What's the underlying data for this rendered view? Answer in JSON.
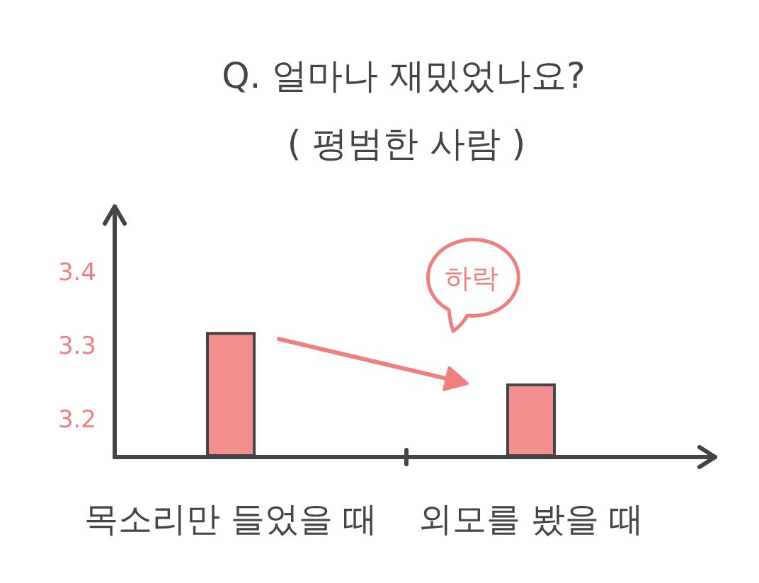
{
  "chart_data": {
    "type": "bar",
    "title": "Q. 얼마나 재밌었나요?",
    "subtitle": "( 평범한 사람 )",
    "categories": [
      "목소리만 들었을 때",
      "외모를 봤을 때"
    ],
    "values": [
      0.17,
      0.1
    ],
    "base": [
      3.15,
      3.15
    ],
    "color": "#f28e8e",
    "ylim": [
      3.15,
      3.5
    ],
    "yticks": [
      3.2,
      3.3,
      3.4
    ],
    "annotations": [
      "하락"
    ]
  }
}
